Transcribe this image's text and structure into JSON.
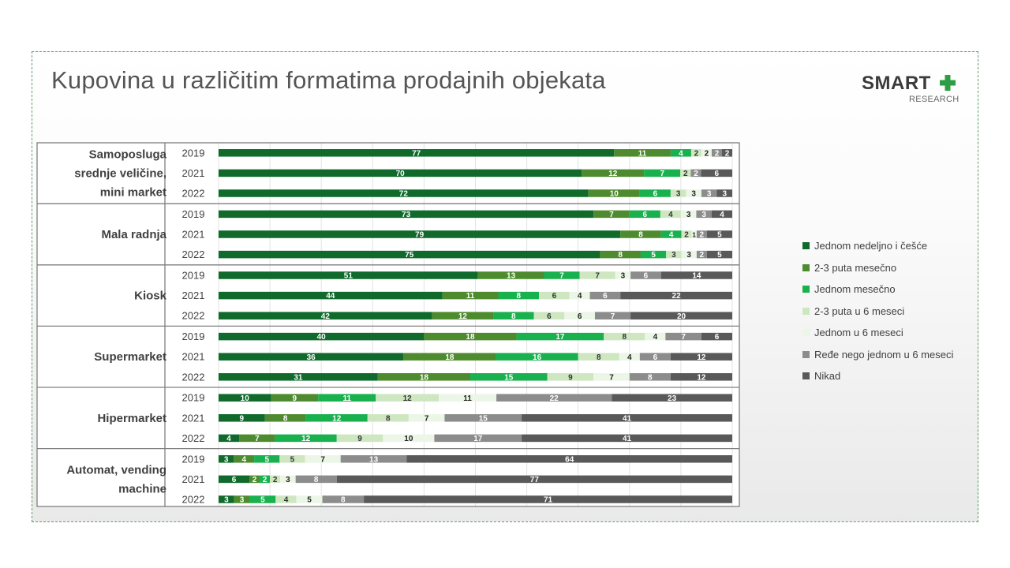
{
  "slide": {
    "title": "Kupovina  u različitim formatima prodajnih objekata",
    "logo_main": "SMART",
    "logo_sub": "RESEARCH",
    "logo_plus_color": "#2e9e44"
  },
  "chart_data": {
    "type": "bar",
    "orientation": "horizontal",
    "stacked": true,
    "ylim": [
      0,
      100
    ],
    "grid": true,
    "legend_position": "right",
    "series_names": [
      "Jednom nedeljno i češće",
      "2-3 puta mesečno",
      "Jednom mesečno",
      "2-3 puta u 6 meseci",
      "Jednom u 6 meseci",
      "Ređe nego jednom u 6 meseci",
      "Nikad"
    ],
    "colors": [
      "#0f6a2c",
      "#4e8b2e",
      "#19b04e",
      "#cfe7c1",
      "#ecf6e7",
      "#8c8c8c",
      "#595959"
    ],
    "groups": [
      {
        "label": "Samoposluga srednje veličine, mini market",
        "label_lines": [
          "Samoposluga",
          "srednje veličine,",
          "mini market"
        ],
        "rows": [
          {
            "year": "2019",
            "values": [
              77,
              11,
              4,
              2,
              2,
              2,
              2
            ]
          },
          {
            "year": "2021",
            "values": [
              70,
              12,
              7,
              2,
              0,
              2,
              6
            ]
          },
          {
            "year": "2022",
            "values": [
              72,
              10,
              6,
              3,
              3,
              3,
              3
            ]
          }
        ]
      },
      {
        "label": "Mala radnja",
        "label_lines": [
          "Mala radnja"
        ],
        "rows": [
          {
            "year": "2019",
            "values": [
              73,
              7,
              6,
              4,
              3,
              3,
              4
            ]
          },
          {
            "year": "2021",
            "values": [
              79,
              8,
              4,
              2,
              1,
              2,
              5
            ]
          },
          {
            "year": "2022",
            "values": [
              75,
              8,
              5,
              3,
              3,
              2,
              5
            ]
          }
        ]
      },
      {
        "label": "Kiosk",
        "label_lines": [
          "Kiosk"
        ],
        "rows": [
          {
            "year": "2019",
            "values": [
              51,
              13,
              7,
              7,
              3,
              6,
              14
            ]
          },
          {
            "year": "2021",
            "values": [
              44,
              11,
              8,
              6,
              4,
              6,
              22
            ]
          },
          {
            "year": "2022",
            "values": [
              42,
              12,
              8,
              6,
              6,
              7,
              20
            ]
          }
        ]
      },
      {
        "label": "Supermarket",
        "label_lines": [
          "Supermarket"
        ],
        "rows": [
          {
            "year": "2019",
            "values": [
              40,
              18,
              17,
              8,
              4,
              7,
              6
            ]
          },
          {
            "year": "2021",
            "values": [
              36,
              18,
              16,
              8,
              4,
              6,
              12
            ]
          },
          {
            "year": "2022",
            "values": [
              31,
              18,
              15,
              9,
              7,
              8,
              12
            ]
          }
        ]
      },
      {
        "label": "Hipermarket",
        "label_lines": [
          "Hipermarket"
        ],
        "rows": [
          {
            "year": "2019",
            "values": [
              10,
              9,
              11,
              12,
              11,
              22,
              23
            ]
          },
          {
            "year": "2021",
            "values": [
              9,
              8,
              12,
              8,
              7,
              15,
              41
            ]
          },
          {
            "year": "2022",
            "values": [
              4,
              7,
              12,
              9,
              10,
              17,
              41
            ]
          }
        ]
      },
      {
        "label": "Automat, vending machine",
        "label_lines": [
          "Automat, vending",
          "machine"
        ],
        "rows": [
          {
            "year": "2019",
            "values": [
              3,
              4,
              5,
              5,
              7,
              13,
              64
            ]
          },
          {
            "year": "2021",
            "values": [
              6,
              2,
              2,
              2,
              3,
              8,
              77
            ]
          },
          {
            "year": "2022",
            "values": [
              3,
              3,
              5,
              4,
              5,
              8,
              71
            ]
          }
        ]
      }
    ]
  }
}
